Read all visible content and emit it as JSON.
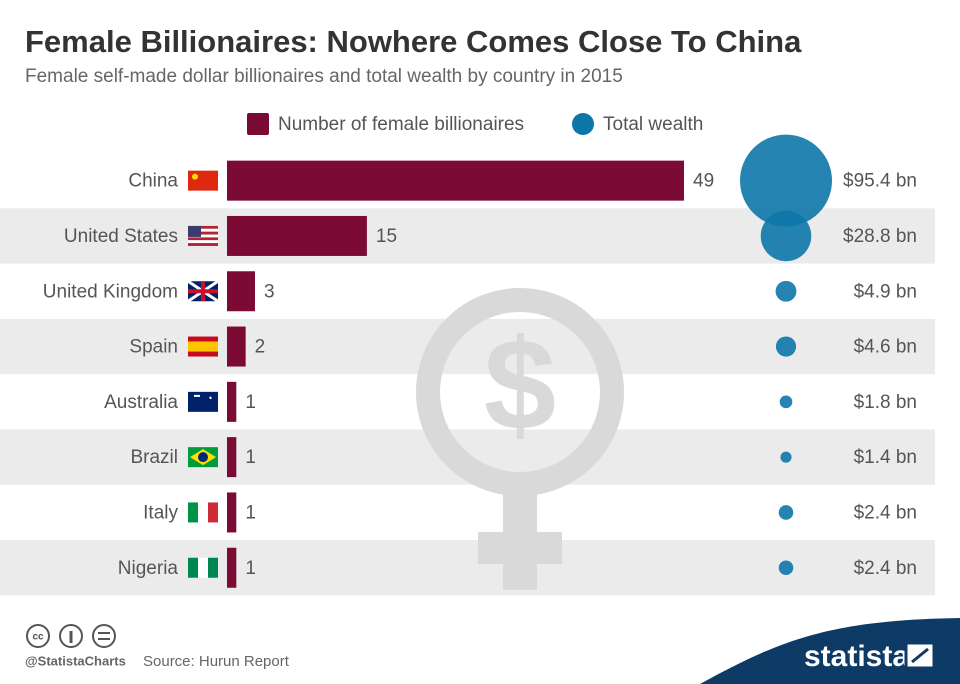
{
  "chart_data": {
    "type": "bar",
    "title": "Female Billionaires: Nowhere Comes Close To China",
    "subtitle": "Female self-made dollar billionaires and total wealth by country in 2015",
    "categories": [
      "China",
      "United States",
      "United Kingdom",
      "Spain",
      "Australia",
      "Brazil",
      "Italy",
      "Nigeria"
    ],
    "series": [
      {
        "name": "Number of female billionaires",
        "color": "#7b0b35",
        "values": [
          49,
          15,
          3,
          2,
          1,
          1,
          1,
          1
        ]
      },
      {
        "name": "Total wealth",
        "type": "bubble",
        "color": "#0d77a9",
        "values": [
          95.4,
          28.8,
          4.9,
          4.6,
          1.8,
          1.4,
          2.4,
          2.4
        ],
        "value_labels": [
          "$95.4 bn",
          "$28.8 bn",
          "$4.9 bn",
          "$4.6 bn",
          "$1.8 bn",
          "$1.4 bn",
          "$2.4 bn",
          "$2.4 bn"
        ]
      }
    ],
    "credit": "@StatistaCharts",
    "source": "Source: Hurun Report",
    "brand": "statista"
  }
}
